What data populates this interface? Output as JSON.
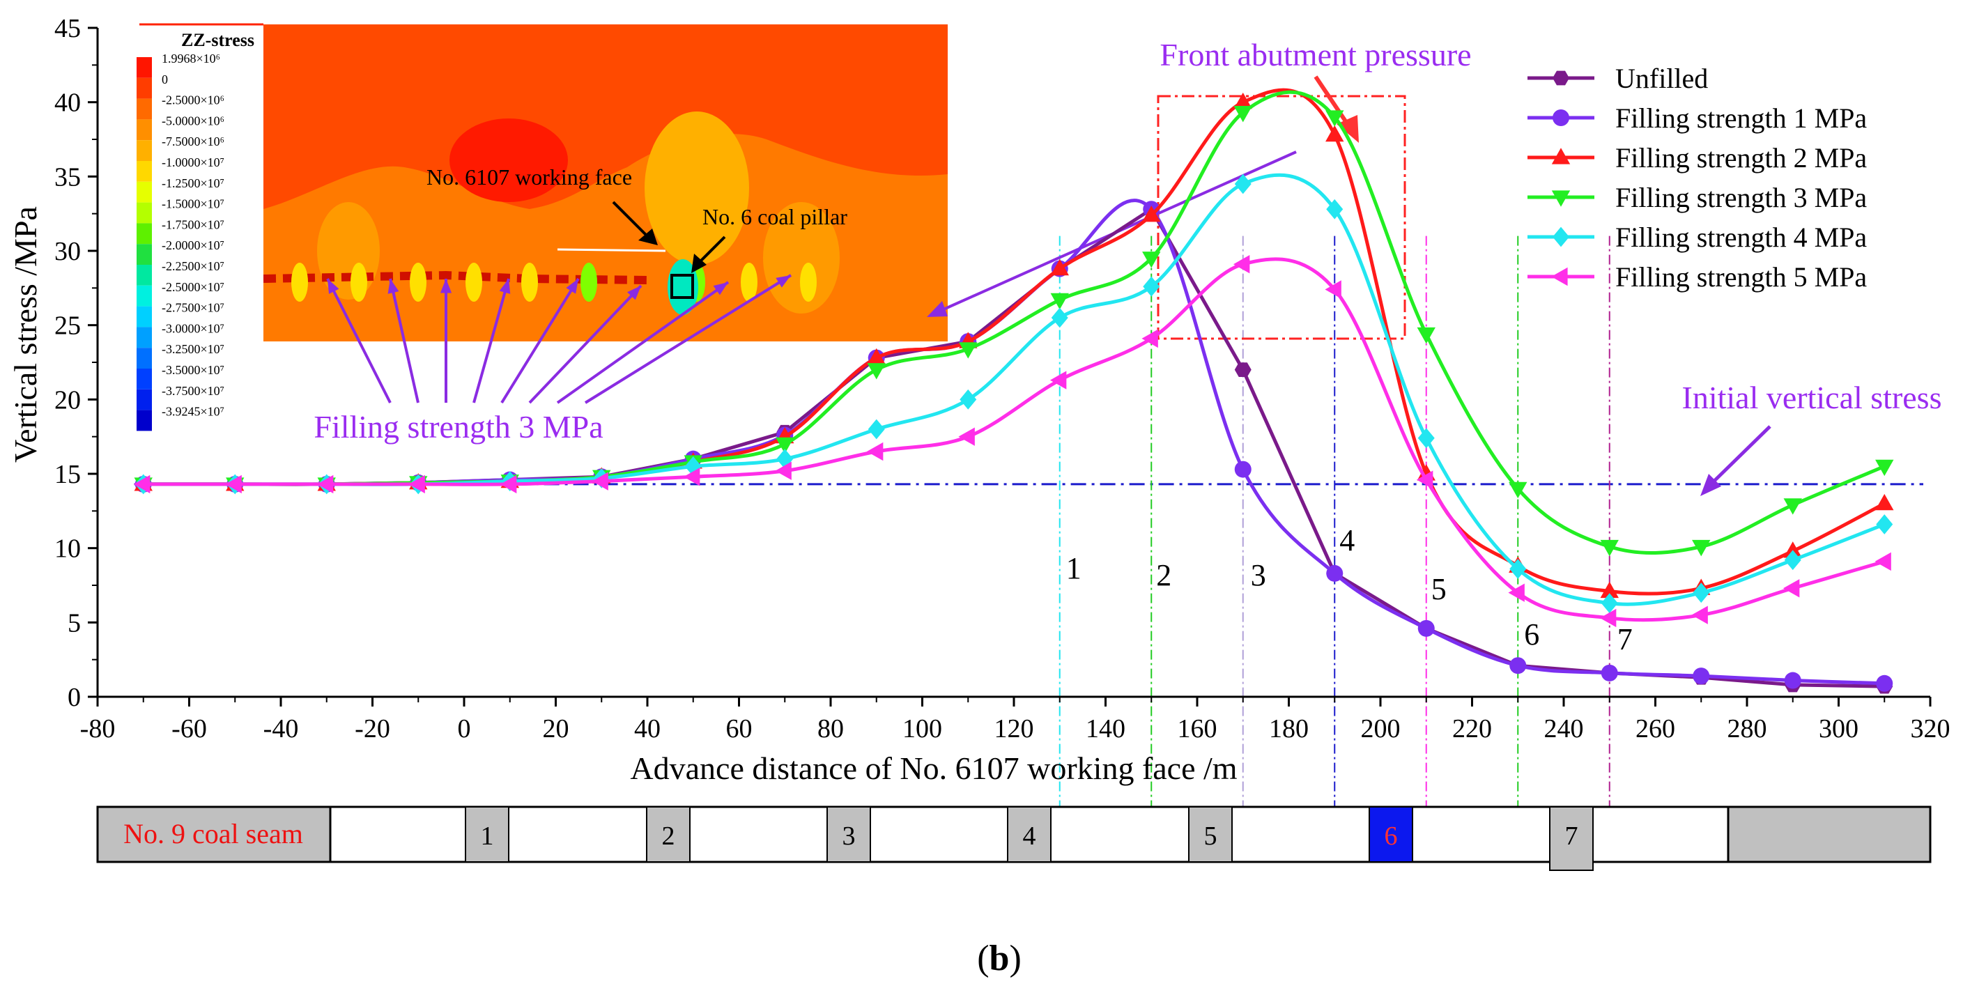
{
  "chart_data": {
    "type": "line",
    "xlabel": "Advance distance of No. 6107 working face /m",
    "ylabel": "Vertical stress /MPa",
    "xlim": [
      -80,
      320
    ],
    "ylim": [
      0,
      45
    ],
    "x_ticks": [
      -80,
      -60,
      -40,
      -20,
      0,
      20,
      40,
      60,
      80,
      100,
      120,
      140,
      160,
      180,
      200,
      220,
      240,
      260,
      280,
      300,
      320
    ],
    "y_ticks": [
      0,
      5,
      10,
      15,
      20,
      25,
      30,
      35,
      40,
      45
    ],
    "x": [
      -70,
      -50,
      -30,
      -10,
      10,
      30,
      50,
      70,
      90,
      110,
      130,
      150,
      170,
      190,
      210,
      230,
      250,
      270,
      290,
      310
    ],
    "series": [
      {
        "name": "Unfilled",
        "color": "#7a1a8a",
        "marker": "hexagon",
        "values": [
          14.3,
          14.3,
          14.3,
          14.4,
          14.6,
          14.8,
          16.0,
          17.8,
          22.8,
          23.9,
          28.8,
          32.8,
          22.0,
          8.3,
          4.6,
          2.1,
          1.6,
          1.3,
          0.8,
          0.7
        ]
      },
      {
        "name": "Filling strength 1 MPa",
        "color": "#7b2ff0",
        "marker": "circle",
        "values": [
          14.3,
          14.3,
          14.3,
          14.4,
          14.6,
          14.8,
          16.0,
          17.6,
          22.8,
          23.9,
          28.8,
          32.8,
          15.3,
          8.3,
          4.6,
          2.1,
          1.6,
          1.4,
          1.1,
          0.9
        ]
      },
      {
        "name": "Filling strength 2 MPa",
        "color": "#ff1a1a",
        "marker": "triangle-up",
        "values": [
          14.3,
          14.3,
          14.3,
          14.4,
          14.5,
          14.8,
          15.8,
          17.5,
          22.8,
          23.9,
          28.8,
          32.4,
          40.0,
          37.8,
          15.0,
          8.8,
          7.1,
          7.3,
          9.8,
          13.0
        ]
      },
      {
        "name": "Filling strength 3 MPa",
        "color": "#22ee22",
        "marker": "triangle-down",
        "values": [
          14.3,
          14.3,
          14.3,
          14.4,
          14.5,
          14.8,
          15.8,
          17.0,
          22.0,
          23.4,
          26.7,
          29.5,
          39.3,
          39.0,
          24.4,
          14.0,
          10.1,
          10.1,
          12.9,
          15.5
        ]
      },
      {
        "name": "Filling strength 4 MPa",
        "color": "#22e6f0",
        "marker": "diamond",
        "values": [
          14.3,
          14.3,
          14.3,
          14.3,
          14.5,
          14.7,
          15.5,
          16.0,
          18.0,
          20.0,
          25.5,
          27.6,
          34.5,
          32.8,
          17.4,
          8.6,
          6.3,
          7.0,
          9.2,
          11.6
        ]
      },
      {
        "name": "Filling strength 5 MPa",
        "color": "#ff2ee8",
        "marker": "triangle-left",
        "values": [
          14.3,
          14.3,
          14.3,
          14.3,
          14.3,
          14.5,
          14.8,
          15.2,
          16.5,
          17.5,
          21.3,
          24.1,
          29.1,
          27.4,
          14.6,
          7.0,
          5.3,
          5.5,
          7.3,
          9.1
        ]
      }
    ],
    "reference_line": {
      "label": "Initial vertical stress",
      "y": 14.3,
      "color": "#1a1acc"
    },
    "annotations": {
      "front_abutment": "Front abutment pressure",
      "filling_label": "Filling strength 3 MPa",
      "working_face": "No. 6107 working face",
      "coal_pillar": "No. 6 coal pillar"
    },
    "vertical_markers": [
      {
        "label": "1",
        "x": 130,
        "color": "#22e6f0"
      },
      {
        "label": "2",
        "x": 150,
        "color": "#22cc22"
      },
      {
        "label": "3",
        "x": 170,
        "color": "#b0a0d8"
      },
      {
        "label": "4",
        "x": 190,
        "color": "#1a1acc"
      },
      {
        "label": "5",
        "x": 210,
        "color": "#ff2ee8"
      },
      {
        "label": "6",
        "x": 230,
        "color": "#22cc22"
      },
      {
        "label": "7",
        "x": 250,
        "color": "#b0208f"
      }
    ],
    "inset": {
      "title": "ZZ-stress",
      "legend_labels": [
        "1.9968×10⁶",
        "0",
        "-2.5000×10⁶",
        "-5.0000×10⁶",
        "-7.5000×10⁶",
        "-1.0000×10⁷",
        "-1.2500×10⁷",
        "-1.5000×10⁷",
        "-1.7500×10⁷",
        "-2.0000×10⁷",
        "-2.2500×10⁷",
        "-2.5000×10⁷",
        "-2.7500×10⁷",
        "-3.0000×10⁷",
        "-3.2500×10⁷",
        "-3.5000×10⁷",
        "-3.7500×10⁷",
        "-3.9245×10⁷"
      ],
      "legend_colors": [
        "#ff1500",
        "#ff3d00",
        "#ff6a00",
        "#ff8f00",
        "#ffb000",
        "#ffd800",
        "#e6ff00",
        "#b4ff00",
        "#5ef000",
        "#20e040",
        "#00e8a0",
        "#00f0e0",
        "#00d0ff",
        "#00a0ff",
        "#0070ff",
        "#0040ff",
        "#0020ee",
        "#0000cc"
      ]
    },
    "strip": {
      "start_label": "No. 9 coal seam",
      "pillars": [
        "1",
        "2",
        "3",
        "4",
        "5",
        "6",
        "7"
      ]
    },
    "panel_letter": "b",
    "panel_paren_open": "(",
    "panel_paren_close": ")"
  }
}
